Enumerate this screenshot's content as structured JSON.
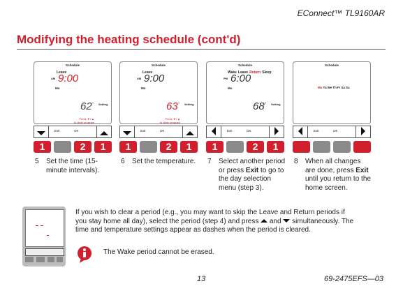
{
  "header": {
    "product": "EConnect™ TL9160AR",
    "title": "Modifying the heating schedule (cont'd)"
  },
  "panels": [
    {
      "screen": {
        "label": "Schedule",
        "periods": [
          "Leave"
        ],
        "ampm": "AM",
        "time": "9:00",
        "time_color": "#d0202e",
        "day": "Mo",
        "temp": "62",
        "unit": "°",
        "temp_color": "#444",
        "setting": "Setting",
        "hint": [
          "Press ▼+▲",
          "to clear program"
        ]
      },
      "arrows": "vertical",
      "buttons": [
        "Exit",
        "OK"
      ],
      "keys": [
        {
          "label": "1",
          "color": "#d0202e"
        },
        {
          "color": "#8a8a8a"
        },
        {
          "label": "2",
          "color": "#d0202e"
        },
        {
          "label": "1",
          "color": "#d0202e"
        }
      ]
    },
    {
      "screen": {
        "label": "Schedule",
        "periods": [
          "Leave"
        ],
        "ampm": "AM",
        "time": "9:00",
        "time_color": "#333",
        "day": "Mo",
        "temp": "63",
        "unit": "°",
        "temp_color": "#d0202e",
        "setting": "Setting",
        "hint": [
          "Press ▼+▲",
          "to clear program"
        ]
      },
      "arrows": "vertical",
      "buttons": [
        "Exit",
        "OK"
      ],
      "keys": [
        {
          "label": "1",
          "color": "#d0202e"
        },
        {
          "color": "#8a8a8a"
        },
        {
          "label": "2",
          "color": "#d0202e"
        },
        {
          "label": "1",
          "color": "#d0202e"
        }
      ]
    },
    {
      "screen": {
        "label": "Schedule",
        "periods": [
          "Wake",
          "Leave",
          "Return",
          "Sleep"
        ],
        "highlight": 2,
        "ampm": "PM",
        "time": "6:00",
        "time_color": "#333",
        "day": "Mo",
        "temp": "68",
        "unit": "°",
        "temp_color": "#333",
        "setting": "Setting"
      },
      "arrows": "horizontal",
      "buttons": [
        "Exit",
        "OK"
      ],
      "keys": [
        {
          "label": "1",
          "color": "#d0202e"
        },
        {
          "color": "#8a8a8a"
        },
        {
          "label": "2",
          "color": "#d0202e"
        },
        {
          "label": "1",
          "color": "#d0202e"
        }
      ]
    },
    {
      "screen": {
        "label": "Schedule",
        "days": [
          "Mo",
          "Tu",
          "We",
          "Th",
          "Fr",
          "Sa",
          "Su"
        ],
        "highlight": 0
      },
      "arrows": "horizontal",
      "buttons": [
        "Exit",
        "OK"
      ],
      "keys": [
        {
          "color": "#d0202e"
        },
        {
          "color": "#8a8a8a"
        },
        {
          "color": "#8a8a8a"
        },
        {
          "color": "#d0202e"
        }
      ]
    }
  ],
  "steps": [
    {
      "number": "5",
      "parts": [
        "Set the time (15-minute intervals)."
      ]
    },
    {
      "number": "6",
      "parts": [
        "Set the temperature."
      ]
    },
    {
      "number": "7",
      "parts": [
        "Select another period or press ",
        {
          "bold": "Exit"
        },
        " to go to the day selection menu (step 3)."
      ]
    },
    {
      "number": "8",
      "parts": [
        "When all changes are done, press ",
        {
          "bold": "Exit"
        },
        " until you return to the home screen."
      ]
    }
  ],
  "paragraph": [
    "If you wish to clear a period (e.g., you may want to skip the Leave and Return periods if you stay home all day), select the period (step 4) and press ",
    {
      "icon": "up"
    },
    " and ",
    {
      "icon": "down"
    },
    " simultaneously. The time and temperature settings appear as dashes when the period is cleared."
  ],
  "note": "The Wake period cannot be erased.",
  "footer": {
    "page": "13",
    "doc": "69-2475EFS—03"
  }
}
